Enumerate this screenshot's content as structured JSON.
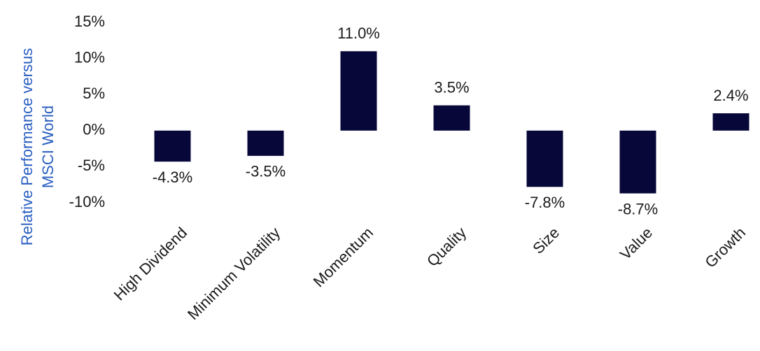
{
  "chart_data": {
    "type": "bar",
    "y_label": [
      "Relative Performance versus",
      "MSCI World"
    ],
    "categories": [
      "High Dividend",
      "Minimum Volatility",
      "Momentum",
      "Quality",
      "Size",
      "Value",
      "Growth"
    ],
    "values": [
      -4.3,
      -3.5,
      11.0,
      3.5,
      -7.8,
      -8.7,
      2.4
    ],
    "value_labels": [
      "-4.3%",
      "-3.5%",
      "11.0%",
      "3.5%",
      "-7.8%",
      "-8.7%",
      "2.4%"
    ],
    "color": "#07073a",
    "ylim": [
      -10,
      15
    ],
    "yticks": [
      {
        "value": -10,
        "label": "-10%"
      },
      {
        "value": -5,
        "label": "-5%"
      },
      {
        "value": 0,
        "label": "0%"
      },
      {
        "value": 5,
        "label": "5%"
      },
      {
        "value": 10,
        "label": "10%"
      },
      {
        "value": 15,
        "label": "15%"
      }
    ],
    "grid": false
  }
}
